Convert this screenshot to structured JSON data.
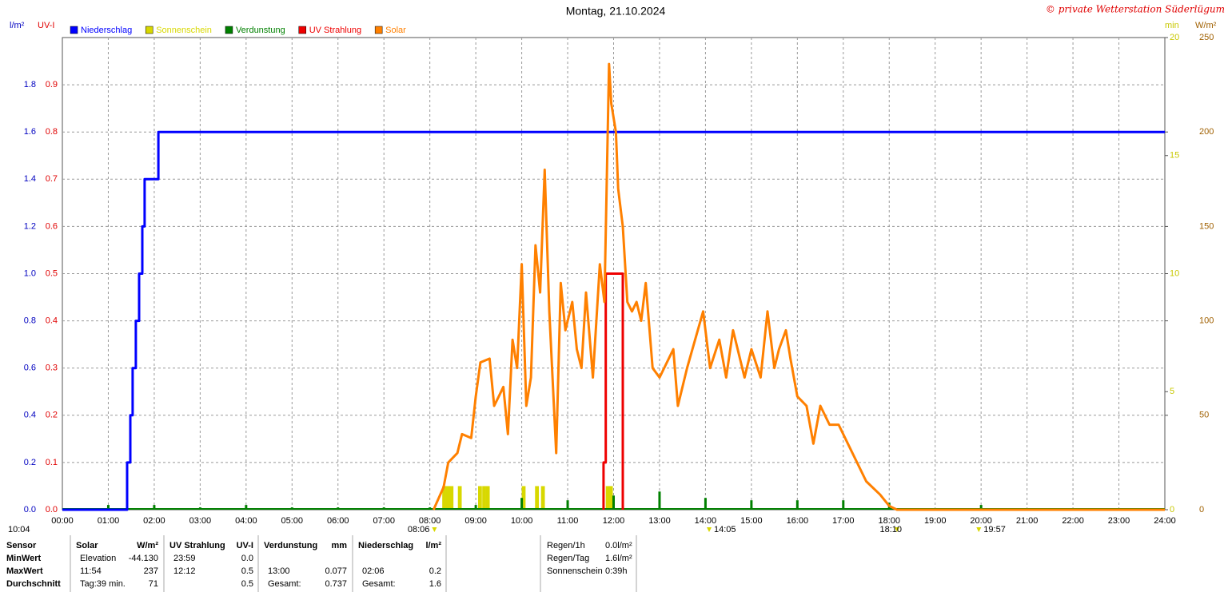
{
  "chart_data": {
    "type": "weather",
    "title": "Montag, 21.10.2024",
    "credit": "© private Wetterstation Süderlügum",
    "xlim": [
      0,
      24
    ],
    "xticks": [
      {
        "value": 0,
        "label": "00:00"
      },
      {
        "value": 1,
        "label": "01:00"
      },
      {
        "value": 2,
        "label": "02:00"
      },
      {
        "value": 3,
        "label": "03:00"
      },
      {
        "value": 4,
        "label": "04:00"
      },
      {
        "value": 5,
        "label": "05:00"
      },
      {
        "value": 6,
        "label": "06:00"
      },
      {
        "value": 7,
        "label": "07:00"
      },
      {
        "value": 8,
        "label": "08:00"
      },
      {
        "value": 9,
        "label": "09:00"
      },
      {
        "value": 10,
        "label": "10:00"
      },
      {
        "value": 11,
        "label": "11:00"
      },
      {
        "value": 12,
        "label": "12:00"
      },
      {
        "value": 13,
        "label": "13:00"
      },
      {
        "value": 14,
        "label": "14:00"
      },
      {
        "value": 15,
        "label": "15:00"
      },
      {
        "value": 16,
        "label": "16:00"
      },
      {
        "value": 17,
        "label": "17:00"
      },
      {
        "value": 18,
        "label": "18:00"
      },
      {
        "value": 19,
        "label": "19:00"
      },
      {
        "value": 20,
        "label": "20:00"
      },
      {
        "value": 21,
        "label": "21:00"
      },
      {
        "value": 22,
        "label": "22:00"
      },
      {
        "value": 23,
        "label": "23:00"
      },
      {
        "value": 24,
        "label": "24:00"
      }
    ],
    "grid": true,
    "axes": {
      "y": {
        "label": "l/m²",
        "color": "#0000c0",
        "side": "left",
        "lim": [
          0,
          2
        ],
        "ticks": [
          {
            "value": 0,
            "label": "0.0"
          },
          0.2,
          0.4,
          0.6,
          0.8,
          {
            "value": 1,
            "label": "1.0"
          },
          1.2,
          1.4,
          1.6,
          1.8
        ]
      },
      "uv": {
        "label": "UV-I",
        "color": "#e00000",
        "side": "left",
        "lim": [
          0,
          1
        ],
        "ticks": [
          {
            "value": 0,
            "label": "0.0"
          },
          0.1,
          0.2,
          0.3,
          0.4,
          0.5,
          0.6,
          0.7,
          0.8,
          0.9
        ]
      },
      "min": {
        "label": "min",
        "color": "#c8c800",
        "side": "right",
        "lim": [
          0,
          20
        ],
        "ticks": [
          0,
          5,
          10,
          15,
          20
        ]
      },
      "wm": {
        "label": "W/m²",
        "color": "#a06000",
        "side": "right",
        "lim": [
          0,
          250
        ],
        "ticks": [
          0,
          50,
          100,
          150,
          200,
          250
        ]
      }
    },
    "series": [
      {
        "name": "Niederschlag",
        "color": "#0000ff",
        "axis": "y",
        "kind": "line",
        "x": [
          0,
          1.41,
          1.41,
          1.48,
          1.48,
          1.53,
          1.53,
          1.6,
          1.6,
          1.67,
          1.67,
          1.74,
          1.74,
          1.79,
          1.79,
          2.09,
          2.09,
          24
        ],
        "values": [
          0,
          0,
          0.2,
          0.2,
          0.4,
          0.4,
          0.6,
          0.6,
          0.8,
          0.8,
          1.0,
          1.0,
          1.2,
          1.2,
          1.4,
          1.4,
          1.6,
          1.6
        ]
      },
      {
        "name": "Sonnenschein",
        "color": "#d8d800",
        "axis": "min",
        "kind": "bar",
        "x": [
          8.27,
          8.35,
          8.43,
          8.61,
          9.05,
          9.14,
          9.22,
          10.0,
          10.29,
          10.42,
          11.83,
          11.9
        ],
        "values": [
          1,
          1,
          1,
          1,
          1,
          1,
          1,
          1,
          1,
          1,
          1,
          1
        ]
      },
      {
        "name": "Verdunstung",
        "color": "#008000",
        "axis": "y",
        "kind": "spike",
        "x": [
          1,
          2,
          3,
          4,
          5,
          6,
          7,
          8,
          9,
          10,
          11,
          12,
          13,
          14,
          15,
          16,
          17,
          18,
          20
        ],
        "values": [
          0.02,
          0.02,
          0.01,
          0.02,
          0.01,
          0.01,
          0.01,
          0.01,
          0.02,
          0.05,
          0.04,
          0.06,
          0.077,
          0.05,
          0.04,
          0.04,
          0.04,
          0.03,
          0.02
        ]
      },
      {
        "name": "UV Strahlung",
        "color": "#ee0000",
        "axis": "uv",
        "kind": "line",
        "x": [
          11.78,
          11.78,
          11.83,
          11.83,
          12.2,
          12.2
        ],
        "values": [
          0,
          0.1,
          0.1,
          0.5,
          0.5,
          0
        ]
      },
      {
        "name": "Solar",
        "color": "#ff8000",
        "axis": "wm",
        "kind": "line",
        "x": [
          8.08,
          8.3,
          8.4,
          8.6,
          8.7,
          8.9,
          9.0,
          9.1,
          9.3,
          9.4,
          9.5,
          9.6,
          9.7,
          9.8,
          9.9,
          10.0,
          10.1,
          10.2,
          10.3,
          10.4,
          10.5,
          10.6,
          10.75,
          10.85,
          10.95,
          11.1,
          11.2,
          11.3,
          11.4,
          11.55,
          11.7,
          11.8,
          11.9,
          11.95,
          12.05,
          12.1,
          12.2,
          12.3,
          12.4,
          12.5,
          12.6,
          12.7,
          12.85,
          13.0,
          13.3,
          13.4,
          13.6,
          13.95,
          14.1,
          14.3,
          14.45,
          14.6,
          14.85,
          15.0,
          15.2,
          15.35,
          15.5,
          15.6,
          15.75,
          15.85,
          16.0,
          16.2,
          16.35,
          16.5,
          16.7,
          16.9,
          17.1,
          17.3,
          17.5,
          17.8,
          18.0,
          18.17,
          24
        ],
        "values": [
          0,
          12,
          25,
          30,
          40,
          38,
          60,
          78,
          80,
          55,
          60,
          65,
          40,
          90,
          75,
          130,
          55,
          70,
          140,
          115,
          180,
          105,
          30,
          120,
          95,
          110,
          85,
          75,
          115,
          70,
          130,
          110,
          236,
          215,
          200,
          170,
          150,
          110,
          105,
          110,
          100,
          120,
          75,
          70,
          85,
          55,
          75,
          105,
          75,
          90,
          70,
          95,
          70,
          85,
          70,
          105,
          75,
          85,
          95,
          80,
          60,
          55,
          35,
          55,
          45,
          45,
          35,
          25,
          15,
          8,
          2,
          0,
          0
        ]
      }
    ],
    "annotations": [
      {
        "text": "10:04"
      },
      {
        "text": "08:06",
        "x": 8.1
      },
      {
        "text": "14:05",
        "x": 14.08
      },
      {
        "text": "18:10",
        "x": 18.17
      },
      {
        "text": "19:57",
        "x": 19.95
      }
    ],
    "stats": {
      "row_labels": [
        "Sensor",
        "MinWert",
        "MaxWert",
        "Durchschnitt"
      ],
      "groups": [
        {
          "name": "Solar",
          "unit": "W/m²",
          "rows": [
            [
              "Elevation",
              "-44.130"
            ],
            [
              "11:54",
              "237"
            ],
            [
              "Tag:39 min.",
              "71"
            ]
          ]
        },
        {
          "name": "UV Strahlung",
          "unit": "UV-I",
          "rows": [
            [
              "23:59",
              "0.0"
            ],
            [
              "12:12",
              "0.5"
            ],
            [
              null,
              "0.5"
            ]
          ]
        },
        {
          "name": "Verdunstung",
          "unit": "mm",
          "rows": [
            [
              null,
              null
            ],
            [
              "13:00",
              "0.077"
            ],
            [
              "Gesamt:",
              "0.737"
            ]
          ]
        },
        {
          "name": "Niederschlag",
          "unit": "l/m²",
          "rows": [
            [
              null,
              null
            ],
            [
              "02:06",
              "0.2"
            ],
            [
              "Gesamt:",
              "1.6"
            ]
          ]
        }
      ],
      "info": [
        [
          "Regen/1h",
          "0.0l/m²"
        ],
        [
          "Regen/Tag",
          "1.6l/m²"
        ],
        [
          "Sonnenschein",
          "0:39h"
        ]
      ]
    }
  }
}
